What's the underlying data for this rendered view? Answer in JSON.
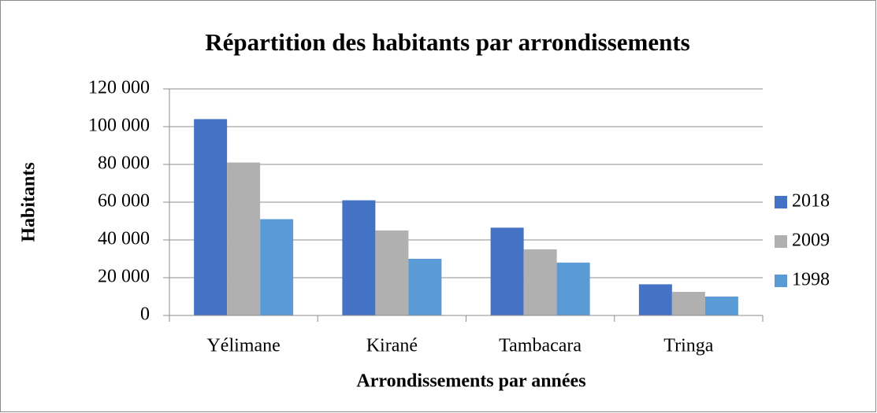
{
  "chart_data": {
    "type": "bar",
    "title": "Répartition des habitants par arrondissements",
    "y_label": "Habitants",
    "x_label": "Arrondissements par années",
    "categories": [
      "Yélimane",
      "Kirané",
      "Tambacara",
      "Tringa"
    ],
    "series": [
      {
        "name": "2018",
        "color": "#4472c4",
        "values": [
          104000,
          61000,
          46500,
          16500
        ]
      },
      {
        "name": "2009",
        "color": "#b0b0b0",
        "values": [
          81000,
          45000,
          35000,
          12500
        ]
      },
      {
        "name": "1998",
        "color": "#5b9bd5",
        "values": [
          51000,
          30000,
          28000,
          10000
        ]
      }
    ],
    "ylim": [
      0,
      120000
    ],
    "yticks": [
      0,
      {
        "value": 20000,
        "label": "20 000"
      },
      {
        "value": 40000,
        "label": "40 000"
      },
      {
        "value": 60000,
        "label": "60 000"
      },
      {
        "value": 80000,
        "label": "80 000"
      },
      {
        "value": 100000,
        "label": "100 000"
      },
      {
        "value": 120000,
        "label": "120 000"
      }
    ],
    "grid": true,
    "legend": "right"
  }
}
